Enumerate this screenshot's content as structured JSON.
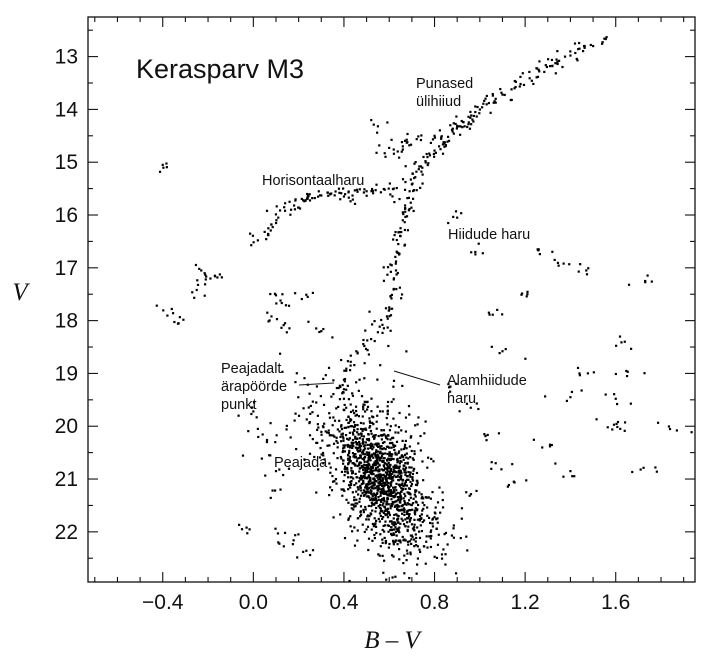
{
  "chart_data": {
    "type": "scatter",
    "title": "Kerasparv M3",
    "xlabel": "B – V",
    "ylabel": "V",
    "xlim": [
      -0.73,
      1.95
    ],
    "ylim": [
      22.95,
      12.25
    ],
    "y_inverted": true,
    "grid": false,
    "xticks": [
      {
        "value": -0.4,
        "label": "−0.4"
      },
      {
        "value": 0.0,
        "label": "0.0"
      },
      {
        "value": 0.4,
        "label": "0.4"
      },
      {
        "value": 0.8,
        "label": "0.8"
      },
      {
        "value": 1.2,
        "label": "1.2"
      },
      {
        "value": 1.6,
        "label": "1.6"
      }
    ],
    "yticks": [
      {
        "value": 13,
        "label": "13"
      },
      {
        "value": 14,
        "label": "14"
      },
      {
        "value": 15,
        "label": "15"
      },
      {
        "value": 16,
        "label": "16"
      },
      {
        "value": 17,
        "label": "17"
      },
      {
        "value": 18,
        "label": "18"
      },
      {
        "value": 19,
        "label": "19"
      },
      {
        "value": 20,
        "label": "20"
      },
      {
        "value": 21,
        "label": "21"
      },
      {
        "value": 22,
        "label": "22"
      }
    ],
    "series": [
      {
        "name": "",
        "marker": "dot",
        "color": "#000000",
        "points": [
          [
            1.55,
            12.66
          ],
          [
            1.49,
            12.78
          ],
          [
            1.44,
            12.85
          ],
          [
            1.4,
            12.98
          ],
          [
            1.35,
            13.08
          ],
          [
            1.31,
            13.18
          ],
          [
            1.26,
            13.25
          ],
          [
            1.22,
            13.41
          ],
          [
            1.18,
            13.52
          ],
          [
            1.14,
            13.62
          ],
          [
            1.1,
            13.72
          ],
          [
            1.07,
            13.8
          ],
          [
            1.04,
            13.88
          ],
          [
            1.01,
            13.96
          ],
          [
            0.98,
            14.05
          ],
          [
            0.95,
            14.14
          ],
          [
            0.92,
            14.22
          ],
          [
            0.9,
            14.31
          ],
          [
            0.88,
            14.42
          ],
          [
            0.86,
            14.52
          ],
          [
            0.84,
            14.62
          ],
          [
            0.82,
            14.7
          ],
          [
            0.8,
            14.78
          ],
          [
            0.78,
            14.87
          ],
          [
            0.76,
            14.98
          ],
          [
            0.74,
            15.08
          ],
          [
            0.72,
            15.18
          ],
          [
            0.71,
            15.3
          ],
          [
            0.7,
            15.42
          ],
          [
            0.69,
            15.55
          ],
          [
            0.68,
            15.68
          ],
          [
            0.67,
            15.82
          ],
          [
            0.66,
            15.95
          ],
          [
            0.66,
            16.1
          ],
          [
            0.65,
            16.25
          ],
          [
            0.65,
            16.4
          ],
          [
            0.64,
            16.55
          ],
          [
            0.64,
            16.72
          ],
          [
            0.63,
            16.88
          ],
          [
            0.63,
            17.05
          ],
          [
            0.62,
            17.22
          ],
          [
            0.62,
            17.4
          ],
          [
            0.61,
            17.58
          ],
          [
            0.6,
            17.75
          ],
          [
            0.59,
            17.92
          ],
          [
            0.57,
            18.08
          ],
          [
            0.55,
            18.22
          ],
          [
            0.52,
            18.35
          ],
          [
            0.49,
            18.48
          ],
          [
            0.46,
            18.62
          ],
          [
            0.43,
            18.78
          ],
          [
            0.41,
            18.95
          ],
          [
            0.4,
            19.12
          ],
          [
            0.4,
            19.3
          ],
          [
            0.4,
            19.48
          ],
          [
            0.41,
            19.65
          ],
          [
            0.42,
            19.82
          ],
          [
            0.43,
            20.0
          ],
          [
            0.45,
            20.2
          ],
          [
            0.47,
            20.4
          ],
          [
            0.49,
            20.6
          ],
          [
            0.51,
            20.8
          ],
          [
            0.53,
            21.0
          ],
          [
            0.55,
            21.2
          ],
          [
            0.57,
            21.4
          ],
          [
            0.59,
            21.6
          ],
          [
            0.61,
            21.8
          ],
          [
            0.63,
            22.0
          ],
          [
            0.65,
            22.2
          ],
          [
            0.74,
            14.58
          ],
          [
            0.68,
            14.62
          ],
          [
            0.62,
            14.76
          ],
          [
            0.58,
            14.83
          ],
          [
            0.66,
            14.7
          ],
          [
            0.8,
            14.5
          ],
          [
            0.91,
            14.32
          ],
          [
            0.95,
            14.28
          ],
          [
            1.25,
            13.22
          ],
          [
            1.32,
            13.18
          ],
          [
            0.02,
            16.48
          ],
          [
            0.05,
            16.32
          ],
          [
            0.08,
            16.18
          ],
          [
            0.11,
            16.05
          ],
          [
            0.14,
            15.92
          ],
          [
            0.18,
            15.82
          ],
          [
            0.22,
            15.72
          ],
          [
            0.26,
            15.68
          ],
          [
            0.3,
            15.63
          ],
          [
            0.34,
            15.6
          ],
          [
            0.38,
            15.58
          ],
          [
            0.42,
            15.57
          ],
          [
            0.46,
            15.56
          ],
          [
            0.5,
            15.55
          ],
          [
            0.54,
            15.53
          ],
          [
            0.58,
            15.52
          ],
          [
            0.62,
            15.5
          ],
          [
            0.16,
            15.75
          ],
          [
            0.24,
            15.66
          ],
          [
            0.4,
            15.65
          ],
          [
            -0.4,
            15.05
          ],
          [
            -0.23,
            17.05
          ],
          [
            -0.21,
            17.22
          ],
          [
            -0.17,
            17.15
          ],
          [
            -0.25,
            17.42
          ],
          [
            -0.36,
            17.78
          ],
          [
            -0.33,
            18.05
          ],
          [
            0.1,
            17.52
          ],
          [
            0.12,
            17.62
          ],
          [
            0.08,
            17.92
          ],
          [
            0.14,
            18.05
          ],
          [
            0.24,
            17.55
          ],
          [
            0.3,
            18.2
          ],
          [
            1.26,
            16.65
          ],
          [
            1.37,
            16.92
          ],
          [
            1.21,
            17.5
          ],
          [
            1.47,
            17.05
          ],
          [
            1.73,
            17.25
          ],
          [
            1.64,
            18.4
          ],
          [
            1.65,
            19.05
          ],
          [
            1.44,
            19.0
          ],
          [
            1.4,
            19.45
          ],
          [
            1.6,
            19.48
          ],
          [
            1.61,
            19.92
          ],
          [
            1.62,
            20.05
          ],
          [
            1.87,
            20.08
          ],
          [
            1.4,
            20.85
          ],
          [
            1.31,
            20.35
          ],
          [
            1.71,
            20.82
          ],
          [
            -0.05,
            21.95
          ],
          [
            0.0,
            19.72
          ],
          [
            0.02,
            20.05
          ],
          [
            0.06,
            20.3
          ],
          [
            0.07,
            20.55
          ],
          [
            0.1,
            20.85
          ],
          [
            0.12,
            21.2
          ],
          [
            0.11,
            22.2
          ],
          [
            0.14,
            22.02
          ],
          [
            0.22,
            22.38
          ],
          [
            0.55,
            14.32
          ],
          [
            0.9,
            16.05
          ],
          [
            0.98,
            16.7
          ],
          [
            1.04,
            17.85
          ],
          [
            1.1,
            18.58
          ],
          [
            0.87,
            19.25
          ],
          [
            0.96,
            19.65
          ],
          [
            1.02,
            20.15
          ],
          [
            1.07,
            20.7
          ],
          [
            0.94,
            21.25
          ],
          [
            1.15,
            21.05
          ]
        ],
        "dense_cloud": {
          "center_bv": 0.56,
          "center_v": 20.95,
          "spread_bv": 0.16,
          "spread_v": 0.7,
          "count": 1400
        }
      }
    ],
    "annotations": [
      {
        "id": "horizontal-branch",
        "lines": [
          "Horisontaalharu"
        ]
      },
      {
        "id": "red-giants",
        "lines": [
          "Punased",
          "ülihiiud"
        ]
      },
      {
        "id": "giant-branch",
        "lines": [
          "Hiidude haru"
        ]
      },
      {
        "id": "turnoff",
        "lines": [
          "Peajadalt",
          "ärapöörde",
          "punkt"
        ]
      },
      {
        "id": "subgiant",
        "lines": [
          "Alamhiidude",
          "haru"
        ]
      },
      {
        "id": "main-sequence",
        "lines": [
          "Peajada"
        ]
      }
    ]
  }
}
